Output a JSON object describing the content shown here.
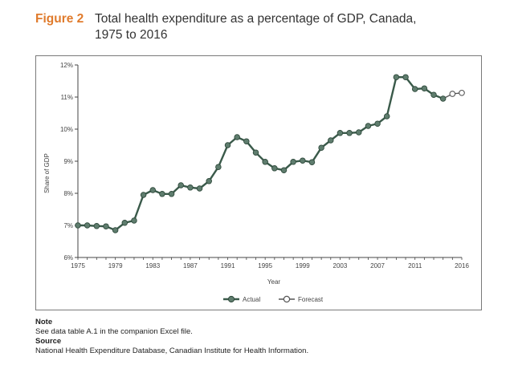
{
  "figure": {
    "label": "Figure 2",
    "title_line1": "Total health expenditure as a percentage of GDP, Canada,",
    "title_line2": "1975 to 2016"
  },
  "colors": {
    "accent": "#e07b2c",
    "series_actual": "#3a5a4a",
    "marker_actual": "#5f7d6e",
    "series_forecast": "#555555",
    "axis": "#444444"
  },
  "chart_data": {
    "type": "line",
    "title": "Total health expenditure as a percentage of GDP, Canada, 1975 to 2016",
    "xlabel": "Year",
    "ylabel": "Share of GDP",
    "xlim": [
      1975,
      2016
    ],
    "ylim": [
      6,
      12
    ],
    "x_ticks": [
      "1975",
      "1979",
      "1983",
      "1987",
      "1991",
      "1995",
      "1999",
      "2003",
      "2007",
      "2011",
      "2016"
    ],
    "y_ticks": [
      "6%",
      "7%",
      "8%",
      "9%",
      "10%",
      "11%",
      "12%"
    ],
    "legend_position": "bottom",
    "series": [
      {
        "name": "Actual",
        "x": [
          1975,
          1976,
          1977,
          1978,
          1979,
          1980,
          1981,
          1982,
          1983,
          1984,
          1985,
          1986,
          1987,
          1988,
          1989,
          1990,
          1991,
          1992,
          1993,
          1994,
          1995,
          1996,
          1997,
          1998,
          1999,
          2000,
          2001,
          2002,
          2003,
          2004,
          2005,
          2006,
          2007,
          2008,
          2009,
          2010,
          2011,
          2012,
          2013,
          2014
        ],
        "values": [
          7.0,
          7.0,
          6.98,
          6.97,
          6.85,
          7.08,
          7.15,
          7.95,
          8.1,
          7.98,
          7.98,
          8.25,
          8.18,
          8.15,
          8.38,
          8.82,
          9.5,
          9.75,
          9.62,
          9.27,
          8.98,
          8.78,
          8.72,
          8.98,
          9.02,
          8.97,
          9.42,
          9.65,
          9.88,
          9.88,
          9.9,
          10.1,
          10.17,
          10.4,
          11.62,
          11.62,
          11.25,
          11.27,
          11.07,
          10.95
        ]
      },
      {
        "name": "Forecast",
        "x": [
          2014,
          2015,
          2016
        ],
        "values": [
          10.95,
          11.1,
          11.13
        ]
      }
    ]
  },
  "notes": {
    "note_heading": "Note",
    "note_text": "See data table A.1 in the companion Excel file.",
    "source_heading": "Source",
    "source_text": "National Health Expenditure Database, Canadian Institute for Health Information."
  }
}
